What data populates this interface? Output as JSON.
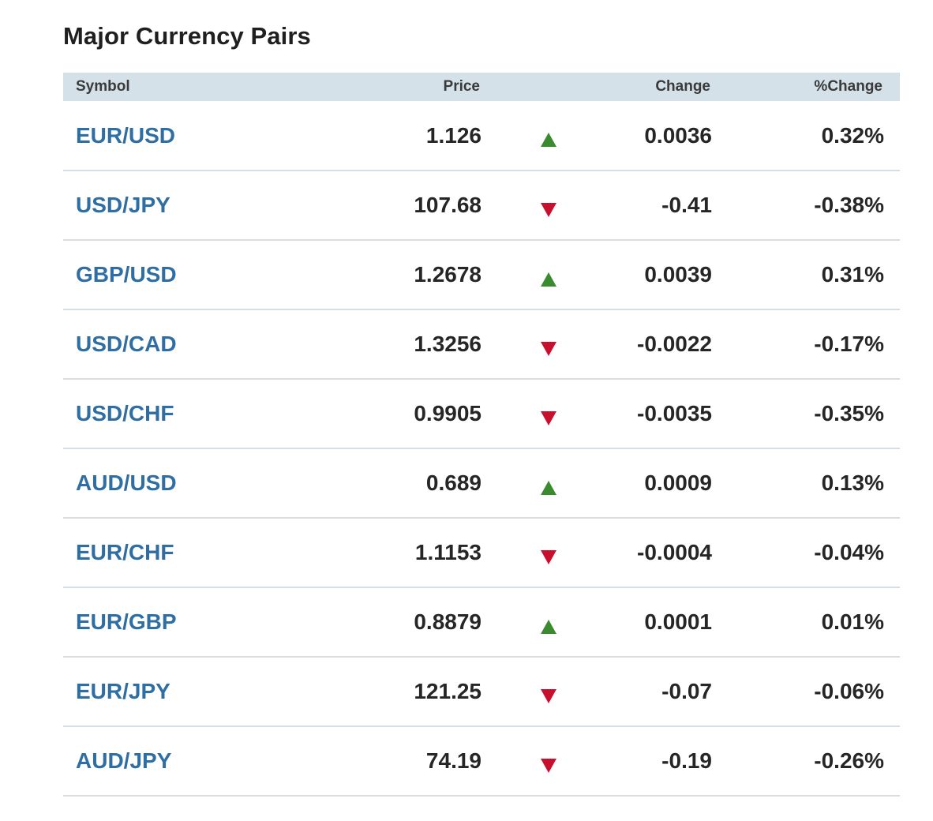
{
  "title": "Major Currency Pairs",
  "columns": {
    "symbol": "Symbol",
    "price": "Price",
    "change": "Change",
    "pct_change": "%Change"
  },
  "colors": {
    "up": "#3a8a2f",
    "down": "#c8102e",
    "symbol_link": "#2f6ea3",
    "header_bg": "#d5e1e9"
  },
  "rows": [
    {
      "symbol": "EUR/USD",
      "price": "1.126",
      "direction": "up",
      "change": "0.0036",
      "pct_change": "0.32%"
    },
    {
      "symbol": "USD/JPY",
      "price": "107.68",
      "direction": "down",
      "change": "-0.41",
      "pct_change": "-0.38%"
    },
    {
      "symbol": "GBP/USD",
      "price": "1.2678",
      "direction": "up",
      "change": "0.0039",
      "pct_change": "0.31%"
    },
    {
      "symbol": "USD/CAD",
      "price": "1.3256",
      "direction": "down",
      "change": "-0.0022",
      "pct_change": "-0.17%"
    },
    {
      "symbol": "USD/CHF",
      "price": "0.9905",
      "direction": "down",
      "change": "-0.0035",
      "pct_change": "-0.35%"
    },
    {
      "symbol": "AUD/USD",
      "price": "0.689",
      "direction": "up",
      "change": "0.0009",
      "pct_change": "0.13%"
    },
    {
      "symbol": "EUR/CHF",
      "price": "1.1153",
      "direction": "down",
      "change": "-0.0004",
      "pct_change": "-0.04%"
    },
    {
      "symbol": "EUR/GBP",
      "price": "0.8879",
      "direction": "up",
      "change": "0.0001",
      "pct_change": "0.01%"
    },
    {
      "symbol": "EUR/JPY",
      "price": "121.25",
      "direction": "down",
      "change": "-0.07",
      "pct_change": "-0.06%"
    },
    {
      "symbol": "AUD/JPY",
      "price": "74.19",
      "direction": "down",
      "change": "-0.19",
      "pct_change": "-0.26%"
    }
  ]
}
